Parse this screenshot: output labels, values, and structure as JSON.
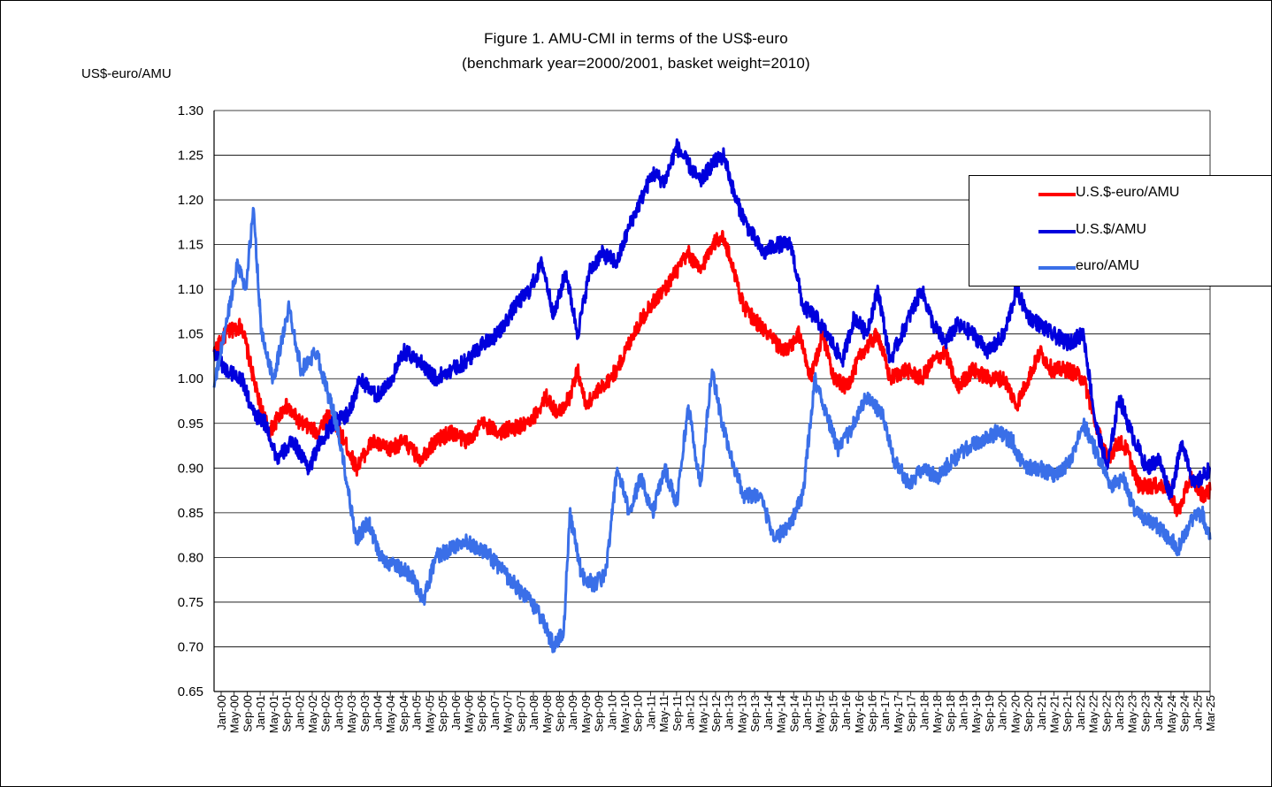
{
  "titles": {
    "line1": "Figure 1. AMU-CMI in terms of the US$-euro",
    "line2": "(benchmark year=2000/2001, basket weight=2010)"
  },
  "chart_data": {
    "type": "line",
    "ylabel": "US$-euro/AMU",
    "ylim": [
      0.65,
      1.3
    ],
    "yticks": [
      "1.30",
      "1.25",
      "1.20",
      "1.15",
      "1.10",
      "1.05",
      "1.00",
      "0.95",
      "0.90",
      "0.85",
      "0.80",
      "0.75",
      "0.70",
      "0.65"
    ],
    "grid": true,
    "legend_position": "right",
    "x_range": [
      "Jan-00",
      "Mar-25"
    ],
    "x_tick_labels": [
      "Jan-00",
      "May-00",
      "Sep-00",
      "Jan-01",
      "May-01",
      "Sep-01",
      "Jan-02",
      "May-02",
      "Sep-02",
      "Jan-03",
      "May-03",
      "Sep-03",
      "Jan-04",
      "May-04",
      "Sep-04",
      "Jan-05",
      "May-05",
      "Sep-05",
      "Jan-06",
      "May-06",
      "Sep-06",
      "Jan-07",
      "May-07",
      "Sep-07",
      "Jan-08",
      "May-08",
      "Sep-08",
      "Jan-09",
      "May-09",
      "Sep-09",
      "Jan-10",
      "May-10",
      "Sep-10",
      "Jan-11",
      "May-11",
      "Sep-11",
      "Jan-12",
      "May-12",
      "Sep-12",
      "Jan-13",
      "May-13",
      "Sep-13",
      "Jan-14",
      "May-14",
      "Sep-14",
      "Jan-15",
      "May-15",
      "Sep-15",
      "Jan-16",
      "May-16",
      "Sep-16",
      "Jan-17",
      "May-17",
      "Sep-17",
      "Jan-18",
      "May-18",
      "Sep-18",
      "Jan-19",
      "May-19",
      "Sep-19",
      "Jan-20",
      "May-20",
      "Sep-20",
      "Jan-21",
      "May-21",
      "Sep-21",
      "Jan-22",
      "May-22",
      "Sep-22",
      "Jan-23",
      "May-23",
      "Sep-23",
      "Jan-24",
      "May-24",
      "Sep-24",
      "Jan-25",
      "Mar-25"
    ],
    "series": [
      {
        "name": "U.S.$-euro/AMU",
        "color": "#ff0000",
        "points": [
          [
            2000.0,
            1.03
          ],
          [
            2000.3,
            1.05
          ],
          [
            2000.7,
            1.06
          ],
          [
            2000.9,
            1.02
          ],
          [
            2001.1,
            0.98
          ],
          [
            2001.4,
            0.94
          ],
          [
            2001.8,
            0.97
          ],
          [
            2002.2,
            0.95
          ],
          [
            2002.6,
            0.94
          ],
          [
            2002.9,
            0.96
          ],
          [
            2003.3,
            0.93
          ],
          [
            2003.6,
            0.9
          ],
          [
            2004.0,
            0.93
          ],
          [
            2004.4,
            0.92
          ],
          [
            2004.8,
            0.93
          ],
          [
            2005.2,
            0.91
          ],
          [
            2005.6,
            0.93
          ],
          [
            2006.0,
            0.94
          ],
          [
            2006.4,
            0.93
          ],
          [
            2006.8,
            0.95
          ],
          [
            2007.2,
            0.94
          ],
          [
            2007.6,
            0.945
          ],
          [
            2008.0,
            0.95
          ],
          [
            2008.4,
            0.98
          ],
          [
            2008.7,
            0.96
          ],
          [
            2009.0,
            0.98
          ],
          [
            2009.2,
            1.01
          ],
          [
            2009.4,
            0.97
          ],
          [
            2009.8,
            0.99
          ],
          [
            2010.2,
            1.01
          ],
          [
            2010.6,
            1.05
          ],
          [
            2011.0,
            1.08
          ],
          [
            2011.4,
            1.1
          ],
          [
            2011.7,
            1.12
          ],
          [
            2012.0,
            1.14
          ],
          [
            2012.3,
            1.12
          ],
          [
            2012.6,
            1.15
          ],
          [
            2012.85,
            1.16
          ],
          [
            2013.1,
            1.13
          ],
          [
            2013.4,
            1.08
          ],
          [
            2013.8,
            1.06
          ],
          [
            2014.2,
            1.04
          ],
          [
            2014.5,
            1.03
          ],
          [
            2014.8,
            1.05
          ],
          [
            2015.1,
            1.0
          ],
          [
            2015.4,
            1.05
          ],
          [
            2015.7,
            1.0
          ],
          [
            2016.0,
            0.99
          ],
          [
            2016.4,
            1.03
          ],
          [
            2016.8,
            1.05
          ],
          [
            2017.1,
            1.0
          ],
          [
            2017.5,
            1.01
          ],
          [
            2017.9,
            1.0
          ],
          [
            2018.2,
            1.02
          ],
          [
            2018.5,
            1.03
          ],
          [
            2018.8,
            0.99
          ],
          [
            2019.2,
            1.01
          ],
          [
            2019.6,
            1.0
          ],
          [
            2020.0,
            1.0
          ],
          [
            2020.3,
            0.97
          ],
          [
            2020.6,
            1.0
          ],
          [
            2020.9,
            1.03
          ],
          [
            2021.2,
            1.01
          ],
          [
            2021.6,
            1.01
          ],
          [
            2022.0,
            1.0
          ],
          [
            2022.3,
            0.95
          ],
          [
            2022.6,
            0.91
          ],
          [
            2022.9,
            0.93
          ],
          [
            2023.1,
            0.92
          ],
          [
            2023.4,
            0.88
          ],
          [
            2023.8,
            0.88
          ],
          [
            2024.1,
            0.88
          ],
          [
            2024.4,
            0.85
          ],
          [
            2024.7,
            0.89
          ],
          [
            2025.0,
            0.87
          ],
          [
            2025.2,
            0.875
          ]
        ]
      },
      {
        "name": "U.S.$/AMU",
        "color": "#0000dd",
        "points": [
          [
            2000.0,
            1.03
          ],
          [
            2000.3,
            1.01
          ],
          [
            2000.7,
            1.0
          ],
          [
            2001.0,
            0.96
          ],
          [
            2001.3,
            0.95
          ],
          [
            2001.6,
            0.91
          ],
          [
            2002.0,
            0.93
          ],
          [
            2002.4,
            0.9
          ],
          [
            2002.7,
            0.93
          ],
          [
            2003.0,
            0.95
          ],
          [
            2003.4,
            0.96
          ],
          [
            2003.7,
            1.0
          ],
          [
            2004.1,
            0.98
          ],
          [
            2004.5,
            1.0
          ],
          [
            2004.8,
            1.03
          ],
          [
            2005.2,
            1.02
          ],
          [
            2005.6,
            1.0
          ],
          [
            2006.0,
            1.01
          ],
          [
            2006.4,
            1.02
          ],
          [
            2006.8,
            1.04
          ],
          [
            2007.2,
            1.05
          ],
          [
            2007.6,
            1.08
          ],
          [
            2008.0,
            1.1
          ],
          [
            2008.3,
            1.13
          ],
          [
            2008.6,
            1.07
          ],
          [
            2008.9,
            1.12
          ],
          [
            2009.2,
            1.05
          ],
          [
            2009.5,
            1.12
          ],
          [
            2009.8,
            1.14
          ],
          [
            2010.2,
            1.13
          ],
          [
            2010.5,
            1.17
          ],
          [
            2010.8,
            1.2
          ],
          [
            2011.1,
            1.23
          ],
          [
            2011.4,
            1.22
          ],
          [
            2011.7,
            1.26
          ],
          [
            2012.0,
            1.24
          ],
          [
            2012.3,
            1.22
          ],
          [
            2012.6,
            1.24
          ],
          [
            2012.9,
            1.25
          ],
          [
            2013.2,
            1.2
          ],
          [
            2013.5,
            1.17
          ],
          [
            2013.9,
            1.14
          ],
          [
            2014.2,
            1.15
          ],
          [
            2014.6,
            1.15
          ],
          [
            2014.9,
            1.08
          ],
          [
            2015.2,
            1.07
          ],
          [
            2015.5,
            1.05
          ],
          [
            2015.9,
            1.02
          ],
          [
            2016.2,
            1.07
          ],
          [
            2016.5,
            1.05
          ],
          [
            2016.8,
            1.1
          ],
          [
            2017.1,
            1.02
          ],
          [
            2017.5,
            1.06
          ],
          [
            2017.9,
            1.1
          ],
          [
            2018.2,
            1.06
          ],
          [
            2018.5,
            1.04
          ],
          [
            2018.8,
            1.06
          ],
          [
            2019.2,
            1.05
          ],
          [
            2019.6,
            1.03
          ],
          [
            2020.0,
            1.05
          ],
          [
            2020.3,
            1.1
          ],
          [
            2020.6,
            1.07
          ],
          [
            2020.9,
            1.06
          ],
          [
            2021.2,
            1.05
          ],
          [
            2021.6,
            1.04
          ],
          [
            2022.0,
            1.05
          ],
          [
            2022.3,
            0.95
          ],
          [
            2022.6,
            0.9
          ],
          [
            2022.9,
            0.98
          ],
          [
            2023.2,
            0.94
          ],
          [
            2023.6,
            0.9
          ],
          [
            2023.9,
            0.91
          ],
          [
            2024.2,
            0.87
          ],
          [
            2024.5,
            0.93
          ],
          [
            2024.8,
            0.88
          ],
          [
            2025.2,
            0.9
          ]
        ]
      },
      {
        "name": "euro/AMU",
        "color": "#3a6fe8",
        "points": [
          [
            2000.0,
            0.99
          ],
          [
            2000.3,
            1.06
          ],
          [
            2000.6,
            1.13
          ],
          [
            2000.8,
            1.1
          ],
          [
            2001.0,
            1.19
          ],
          [
            2001.2,
            1.05
          ],
          [
            2001.5,
            1.0
          ],
          [
            2001.9,
            1.08
          ],
          [
            2002.2,
            1.01
          ],
          [
            2002.6,
            1.03
          ],
          [
            2002.9,
            0.98
          ],
          [
            2003.1,
            0.95
          ],
          [
            2003.3,
            0.9
          ],
          [
            2003.6,
            0.82
          ],
          [
            2003.9,
            0.84
          ],
          [
            2004.2,
            0.8
          ],
          [
            2004.6,
            0.79
          ],
          [
            2005.0,
            0.78
          ],
          [
            2005.3,
            0.75
          ],
          [
            2005.6,
            0.8
          ],
          [
            2006.0,
            0.81
          ],
          [
            2006.3,
            0.82
          ],
          [
            2006.7,
            0.81
          ],
          [
            2007.0,
            0.8
          ],
          [
            2007.4,
            0.78
          ],
          [
            2007.8,
            0.76
          ],
          [
            2008.2,
            0.74
          ],
          [
            2008.6,
            0.7
          ],
          [
            2008.85,
            0.72
          ],
          [
            2009.0,
            0.85
          ],
          [
            2009.3,
            0.78
          ],
          [
            2009.6,
            0.77
          ],
          [
            2009.9,
            0.78
          ],
          [
            2010.2,
            0.9
          ],
          [
            2010.5,
            0.85
          ],
          [
            2010.8,
            0.89
          ],
          [
            2011.1,
            0.85
          ],
          [
            2011.4,
            0.9
          ],
          [
            2011.7,
            0.86
          ],
          [
            2012.0,
            0.97
          ],
          [
            2012.3,
            0.88
          ],
          [
            2012.6,
            1.01
          ],
          [
            2012.85,
            0.95
          ],
          [
            2013.1,
            0.91
          ],
          [
            2013.4,
            0.87
          ],
          [
            2013.8,
            0.87
          ],
          [
            2014.2,
            0.82
          ],
          [
            2014.6,
            0.84
          ],
          [
            2014.9,
            0.87
          ],
          [
            2015.2,
            1.0
          ],
          [
            2015.5,
            0.96
          ],
          [
            2015.8,
            0.92
          ],
          [
            2016.2,
            0.95
          ],
          [
            2016.5,
            0.98
          ],
          [
            2016.9,
            0.96
          ],
          [
            2017.2,
            0.91
          ],
          [
            2017.6,
            0.88
          ],
          [
            2017.9,
            0.9
          ],
          [
            2018.3,
            0.89
          ],
          [
            2018.7,
            0.91
          ],
          [
            2019.0,
            0.92
          ],
          [
            2019.4,
            0.93
          ],
          [
            2019.8,
            0.94
          ],
          [
            2020.2,
            0.93
          ],
          [
            2020.5,
            0.9
          ],
          [
            2020.9,
            0.9
          ],
          [
            2021.3,
            0.89
          ],
          [
            2021.7,
            0.91
          ],
          [
            2022.0,
            0.95
          ],
          [
            2022.4,
            0.91
          ],
          [
            2022.7,
            0.88
          ],
          [
            2023.0,
            0.89
          ],
          [
            2023.3,
            0.85
          ],
          [
            2023.7,
            0.84
          ],
          [
            2024.0,
            0.83
          ],
          [
            2024.4,
            0.81
          ],
          [
            2024.7,
            0.84
          ],
          [
            2025.0,
            0.85
          ],
          [
            2025.2,
            0.82
          ]
        ]
      }
    ]
  }
}
